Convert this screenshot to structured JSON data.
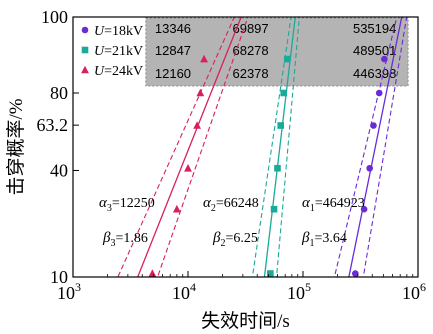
{
  "chart_data": {
    "type": "scatter",
    "xlabel": "失效时间/s",
    "ylabel": "击穿概率/%",
    "x_scale": "log",
    "y_scale": "weibull",
    "xlim": [
      1000,
      1000000
    ],
    "ylim": [
      10,
      100
    ],
    "x_ticks": [
      {
        "value": 1000,
        "base": "10",
        "exp": "3"
      },
      {
        "value": 10000,
        "base": "10",
        "exp": "4"
      },
      {
        "value": 100000,
        "base": "10",
        "exp": "5"
      },
      {
        "value": 1000000,
        "base": "10",
        "exp": "6"
      }
    ],
    "y_ticks": [
      {
        "value": 10,
        "label": "10"
      },
      {
        "value": 40,
        "label": "40"
      },
      {
        "value": 63.2,
        "label": "63.2"
      },
      {
        "value": 80,
        "label": "80"
      },
      {
        "value": 100,
        "label": "100"
      }
    ],
    "legend_position": "top-left",
    "series": [
      {
        "name": "U=18kV",
        "var": "U",
        "rest": "=18kV",
        "color": "#6a2bd8",
        "marker": "circle",
        "points": [
          [
            285000,
            10.5
          ],
          [
            340000,
            25
          ],
          [
            380000,
            41
          ],
          [
            410000,
            63
          ],
          [
            460000,
            80
          ],
          [
            510000,
            93
          ]
        ],
        "fit": {
          "alpha": 464923,
          "beta": 3.64
        },
        "param_alpha": {
          "sym": "α",
          "sub": "1",
          "value": "=464923"
        },
        "param_beta": {
          "sym": "β",
          "sub": "1",
          "value": "=3.64"
        },
        "table": [
          "535194",
          "489501",
          "446398"
        ]
      },
      {
        "name": "U=21kV",
        "var": "U",
        "rest": "=21kV",
        "color": "#1aaa9a",
        "marker": "square",
        "points": [
          [
            52000,
            10.5
          ],
          [
            56000,
            25
          ],
          [
            60000,
            41
          ],
          [
            64000,
            63
          ],
          [
            68000,
            80
          ],
          [
            73000,
            93
          ]
        ],
        "fit": {
          "alpha": 66248,
          "beta": 6.25
        },
        "param_alpha": {
          "sym": "α",
          "sub": "2",
          "value": "=66248"
        },
        "param_beta": {
          "sym": "β",
          "sub": "2",
          "value": "=6.25"
        },
        "table": [
          "69897",
          "68278",
          "62378"
        ]
      },
      {
        "name": "U=24kV",
        "var": "U",
        "rest": "=24kV",
        "color": "#d8205a",
        "marker": "triangle",
        "points": [
          [
            4900,
            10.5
          ],
          [
            8000,
            25
          ],
          [
            10000,
            41
          ],
          [
            12000,
            63
          ],
          [
            12800,
            80
          ],
          [
            13800,
            93
          ]
        ],
        "fit": {
          "alpha": 12250,
          "beta": 1.86
        },
        "param_alpha": {
          "sym": "α",
          "sub": "3",
          "value": "=12250"
        },
        "param_beta": {
          "sym": "β",
          "sub": "3",
          "value": "=1.86"
        },
        "table": [
          "13346",
          "12847",
          "12160"
        ]
      }
    ],
    "table_rows": [
      [
        "13346",
        "69897",
        "535194"
      ],
      [
        "12847",
        "68278",
        "489501"
      ],
      [
        "12160",
        "62378",
        "446398"
      ]
    ],
    "table_color": "#b4b4b4"
  }
}
